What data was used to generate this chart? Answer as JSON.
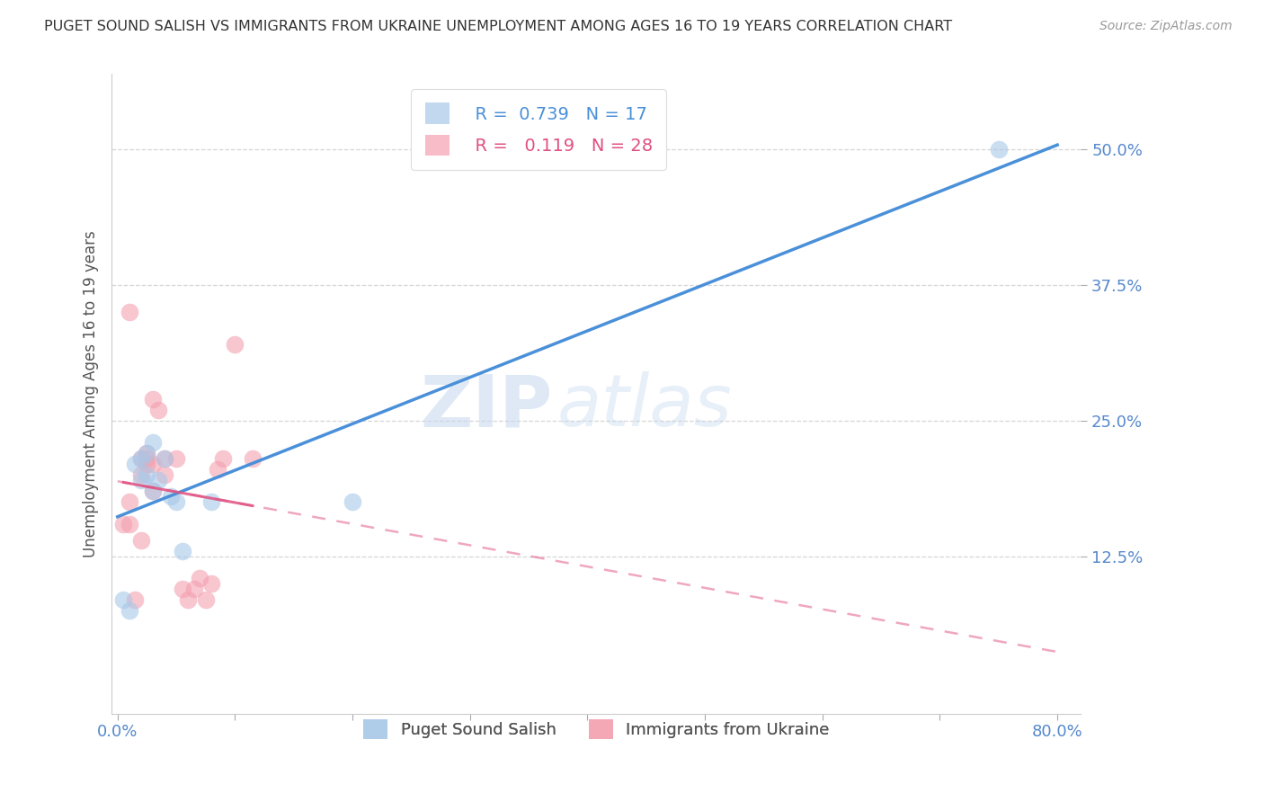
{
  "title": "PUGET SOUND SALISH VS IMMIGRANTS FROM UKRAINE UNEMPLOYMENT AMONG AGES 16 TO 19 YEARS CORRELATION CHART",
  "source": "Source: ZipAtlas.com",
  "ylabel": "Unemployment Among Ages 16 to 19 years",
  "ytick_values": [
    0.125,
    0.25,
    0.375,
    0.5
  ],
  "xtick_values": [
    0.0,
    0.1,
    0.2,
    0.3,
    0.4,
    0.5,
    0.6,
    0.7,
    0.8
  ],
  "xlim": [
    -0.005,
    0.82
  ],
  "ylim": [
    -0.02,
    0.57
  ],
  "legend_blue_r": "0.739",
  "legend_blue_n": "17",
  "legend_pink_r": "0.119",
  "legend_pink_n": "28",
  "blue_label": "Puget Sound Salish",
  "pink_label": "Immigrants from Ukraine",
  "blue_color": "#a8c8e8",
  "pink_color": "#f4a0b0",
  "blue_line_color": "#4a90d9",
  "pink_line_color": "#e05080",
  "watermark_zip": "ZIP",
  "watermark_atlas": "atlas",
  "blue_scatter_x": [
    0.005,
    0.01,
    0.015,
    0.02,
    0.02,
    0.025,
    0.025,
    0.03,
    0.03,
    0.035,
    0.04,
    0.045,
    0.05,
    0.055,
    0.08,
    0.2,
    0.75
  ],
  "blue_scatter_y": [
    0.085,
    0.075,
    0.21,
    0.195,
    0.215,
    0.2,
    0.22,
    0.185,
    0.23,
    0.195,
    0.215,
    0.18,
    0.175,
    0.13,
    0.175,
    0.175,
    0.5
  ],
  "pink_scatter_x": [
    0.005,
    0.01,
    0.01,
    0.01,
    0.015,
    0.02,
    0.02,
    0.02,
    0.025,
    0.025,
    0.025,
    0.03,
    0.03,
    0.03,
    0.035,
    0.04,
    0.04,
    0.05,
    0.055,
    0.06,
    0.065,
    0.07,
    0.075,
    0.08,
    0.085,
    0.09,
    0.1,
    0.115
  ],
  "pink_scatter_y": [
    0.155,
    0.155,
    0.175,
    0.35,
    0.085,
    0.14,
    0.2,
    0.215,
    0.21,
    0.215,
    0.22,
    0.185,
    0.21,
    0.27,
    0.26,
    0.2,
    0.215,
    0.215,
    0.095,
    0.085,
    0.095,
    0.105,
    0.085,
    0.1,
    0.205,
    0.215,
    0.32,
    0.215
  ],
  "grid_color": "#cccccc",
  "background_color": "#ffffff",
  "title_color": "#333333",
  "tick_color": "#5588cc"
}
